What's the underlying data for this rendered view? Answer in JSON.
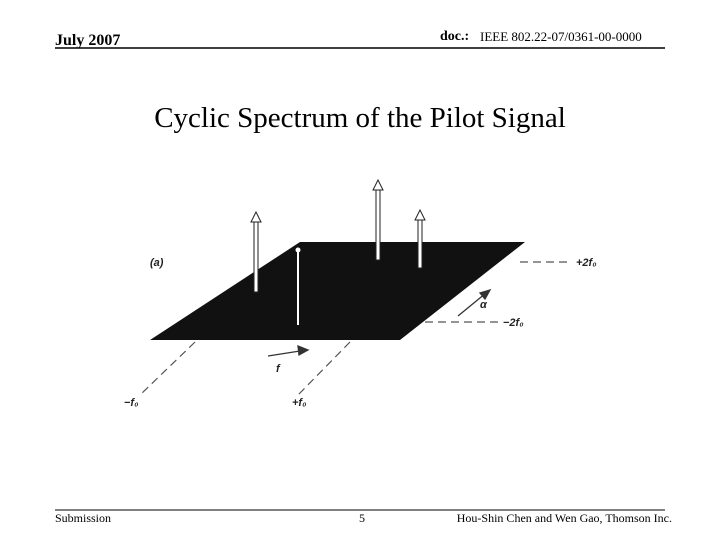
{
  "header": {
    "date": "July 2007",
    "doc_label": "doc.:",
    "doc_number": "IEEE 802.22-07/0361-00-0000"
  },
  "title": "Cyclic Spectrum of the Pilot Signal",
  "figure": {
    "panel": "(a)",
    "labels": {
      "plus_2f0": "+2f₀",
      "alpha": "α",
      "minus_2f0": "−2f₀",
      "f": "f",
      "minus_f0": "−f₀",
      "plus_f0": "+f₀"
    }
  },
  "footer": {
    "left": "Submission",
    "page": "5",
    "right": "Hou-Shin Chen and Wen Gao, Thomson Inc."
  }
}
